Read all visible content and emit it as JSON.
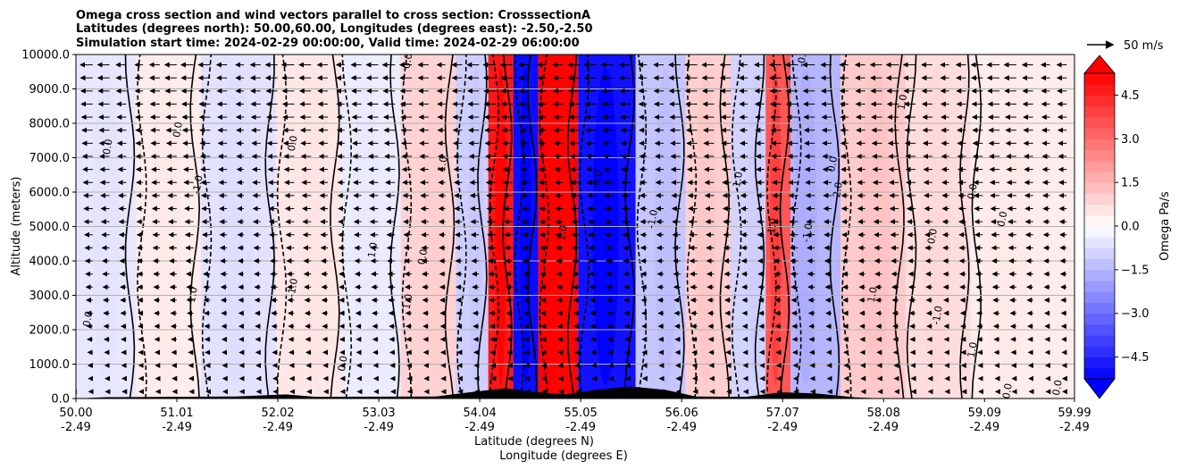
{
  "chart_data": {
    "type": "heatmap",
    "title_lines": [
      "Omega cross section and wind vectors parallel to cross section: CrosssectionA",
      "Latitudes (degrees north): 50.00,60.00, Longitudes (degrees east): -2.50,-2.50",
      "Simulation start time: 2024-02-29 00:00:00, Valid time: 2024-02-29 06:00:00"
    ],
    "xlabel_lat": "Latitude (degrees N)",
    "xlabel_lon": "Longitude (degrees E)",
    "ylabel": "Altitude (meters)",
    "x_range": [
      50.0,
      59.99
    ],
    "ylim": [
      0,
      10000
    ],
    "x_ticks": [
      {
        "lat": "50.00",
        "lon": "-2.49",
        "value": 50.0
      },
      {
        "lat": "51.01",
        "lon": "-2.49",
        "value": 51.01
      },
      {
        "lat": "52.02",
        "lon": "-2.49",
        "value": 52.02
      },
      {
        "lat": "53.03",
        "lon": "-2.49",
        "value": 53.03
      },
      {
        "lat": "54.04",
        "lon": "-2.49",
        "value": 54.04
      },
      {
        "lat": "55.05",
        "lon": "-2.49",
        "value": 55.05
      },
      {
        "lat": "56.06",
        "lon": "-2.49",
        "value": 56.06
      },
      {
        "lat": "57.07",
        "lon": "-2.49",
        "value": 57.07
      },
      {
        "lat": "58.08",
        "lon": "-2.49",
        "value": 58.08
      },
      {
        "lat": "59.09",
        "lon": "-2.49",
        "value": 59.09
      },
      {
        "lat": "59.99",
        "lon": "-2.49",
        "value": 59.99
      }
    ],
    "y_ticks": [
      {
        "label": "0.0",
        "value": 0
      },
      {
        "label": "1000.0",
        "value": 1000
      },
      {
        "label": "2000.0",
        "value": 2000
      },
      {
        "label": "3000.0",
        "value": 3000
      },
      {
        "label": "4000.0",
        "value": 4000
      },
      {
        "label": "5000.0",
        "value": 5000
      },
      {
        "label": "6000.0",
        "value": 6000
      },
      {
        "label": "7000.0",
        "value": 7000
      },
      {
        "label": "8000.0",
        "value": 8000
      },
      {
        "label": "9000.0",
        "value": 9000
      },
      {
        "label": "10000.0",
        "value": 10000
      }
    ],
    "grid": true,
    "colorbar": {
      "label": "Omega Pa/s",
      "range": [
        -5.25,
        5.25
      ],
      "step": 0.375,
      "extend": "both",
      "tick_labels": [
        "4.5",
        "3.0",
        "1.5",
        "0.0",
        "−1.5",
        "−3.0",
        "−4.5"
      ],
      "tick_values": [
        4.5,
        3.0,
        1.5,
        0.0,
        -1.5,
        -3.0,
        -4.5
      ],
      "colormap": "bwr"
    },
    "quiver_key": {
      "label": "50 m/s",
      "speed": 50
    },
    "omega_field": [
      {
        "lat": 50.3,
        "alt_min": 0,
        "alt_max": 10000,
        "omega": -0.5
      },
      {
        "lat": 50.9,
        "alt_min": 0,
        "alt_max": 10000,
        "omega": 0.4
      },
      {
        "lat": 51.6,
        "alt_min": 0,
        "alt_max": 10000,
        "omega": -0.6
      },
      {
        "lat": 52.4,
        "alt_min": 0,
        "alt_max": 10000,
        "omega": 0.5
      },
      {
        "lat": 52.9,
        "alt_min": 0,
        "alt_max": 10000,
        "omega": -0.4
      },
      {
        "lat": 53.6,
        "alt_min": 0,
        "alt_max": 10000,
        "omega": 0.9
      },
      {
        "lat": 54.0,
        "alt_min": 0,
        "alt_max": 10000,
        "omega": -1.0
      },
      {
        "lat": 54.25,
        "alt_min": 0,
        "alt_max": 10000,
        "omega": 4.8
      },
      {
        "lat": 54.5,
        "alt_min": 0,
        "alt_max": 10000,
        "omega": -5.0
      },
      {
        "lat": 54.75,
        "alt_min": 0,
        "alt_max": 10000,
        "omega": 5.2
      },
      {
        "lat": 55.3,
        "alt_min": 0,
        "alt_max": 10000,
        "omega": -4.9
      },
      {
        "lat": 55.9,
        "alt_min": 0,
        "alt_max": 10000,
        "omega": -1.2
      },
      {
        "lat": 56.3,
        "alt_min": 0,
        "alt_max": 10000,
        "omega": 1.0
      },
      {
        "lat": 56.8,
        "alt_min": 0,
        "alt_max": 10000,
        "omega": -0.9
      },
      {
        "lat": 57.0,
        "alt_min": 0,
        "alt_max": 10000,
        "omega": 3.5
      },
      {
        "lat": 57.3,
        "alt_min": 0,
        "alt_max": 10000,
        "omega": -1.5
      },
      {
        "lat": 58.0,
        "alt_min": 0,
        "alt_max": 10000,
        "omega": 1.1
      },
      {
        "lat": 58.6,
        "alt_min": 0,
        "alt_max": 10000,
        "omega": 0.7
      },
      {
        "lat": 59.3,
        "alt_min": 0,
        "alt_max": 10000,
        "omega": 0.4
      }
    ],
    "contour_labels": [
      {
        "text": "0.0",
        "lat": 50.15,
        "alt": 2300
      },
      {
        "text": "0.0",
        "lat": 50.35,
        "alt": 7300
      },
      {
        "text": "0.0",
        "lat": 51.05,
        "alt": 7800
      },
      {
        "text": "-1.0",
        "lat": 51.25,
        "alt": 6200
      },
      {
        "text": "1.0",
        "lat": 51.2,
        "alt": 3000
      },
      {
        "text": "0.0",
        "lat": 52.2,
        "alt": 7400
      },
      {
        "text": "1.0",
        "lat": 53.0,
        "alt": 4300
      },
      {
        "text": "-1.0",
        "lat": 52.2,
        "alt": 3200
      },
      {
        "text": "0.0",
        "lat": 52.7,
        "alt": 1000
      },
      {
        "text": "1.0",
        "lat": 53.35,
        "alt": 2800
      },
      {
        "text": "1.0",
        "lat": 53.7,
        "alt": 6800
      },
      {
        "text": "0.0",
        "lat": 53.5,
        "alt": 4100
      },
      {
        "text": "0.0",
        "lat": 53.35,
        "alt": 9800
      },
      {
        "text": "1.0",
        "lat": 54.9,
        "alt": 4800
      },
      {
        "text": "0.0",
        "lat": 55.25,
        "alt": 6400
      },
      {
        "text": "-1.0",
        "lat": 55.8,
        "alt": 5200
      },
      {
        "text": "-1.0",
        "lat": 56.65,
        "alt": 6300
      },
      {
        "text": "1.0",
        "lat": 57.0,
        "alt": 5000
      },
      {
        "text": "0.0",
        "lat": 57.6,
        "alt": 6800
      },
      {
        "text": "-1.0",
        "lat": 57.35,
        "alt": 4800
      },
      {
        "text": "1.0",
        "lat": 58.0,
        "alt": 3000
      },
      {
        "text": "0.0",
        "lat": 58.6,
        "alt": 4700
      },
      {
        "text": "1.0",
        "lat": 58.3,
        "alt": 8600
      },
      {
        "text": "-1.0",
        "lat": 58.65,
        "alt": 2400
      },
      {
        "text": "0.0",
        "lat": 59.0,
        "alt": 6000
      },
      {
        "text": "0.0",
        "lat": 59.3,
        "alt": 5200
      },
      {
        "text": "1.0",
        "lat": 59.0,
        "alt": 1400
      },
      {
        "text": "0.0",
        "lat": 59.35,
        "alt": 200
      },
      {
        "text": "0.0",
        "lat": 59.85,
        "alt": 300
      },
      {
        "text": "-2.0",
        "lat": 57.65,
        "alt": 6000
      },
      {
        "text": "-0.0",
        "lat": 57.3,
        "alt": 9900
      }
    ],
    "terrain": [
      {
        "lat": 50.0,
        "alt": 0
      },
      {
        "lat": 50.3,
        "alt": 40
      },
      {
        "lat": 51.6,
        "alt": 60
      },
      {
        "lat": 52.1,
        "alt": 120
      },
      {
        "lat": 52.4,
        "alt": 50
      },
      {
        "lat": 53.6,
        "alt": 60
      },
      {
        "lat": 54.0,
        "alt": 200
      },
      {
        "lat": 54.3,
        "alt": 300
      },
      {
        "lat": 54.55,
        "alt": 200
      },
      {
        "lat": 54.9,
        "alt": 120
      },
      {
        "lat": 55.2,
        "alt": 250
      },
      {
        "lat": 55.55,
        "alt": 350
      },
      {
        "lat": 55.9,
        "alt": 250
      },
      {
        "lat": 56.2,
        "alt": 60
      },
      {
        "lat": 56.7,
        "alt": 50
      },
      {
        "lat": 57.05,
        "alt": 180
      },
      {
        "lat": 57.4,
        "alt": 150
      },
      {
        "lat": 57.8,
        "alt": 30
      },
      {
        "lat": 58.1,
        "alt": 0
      },
      {
        "lat": 59.99,
        "alt": 0
      }
    ]
  }
}
